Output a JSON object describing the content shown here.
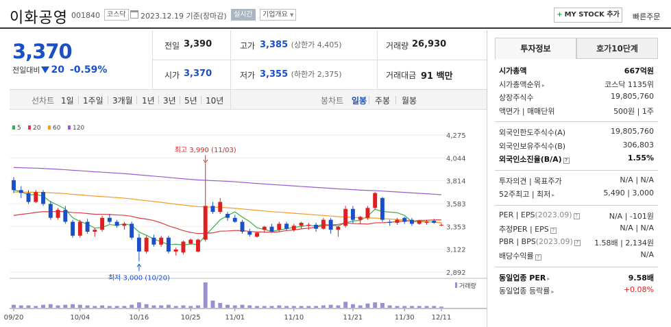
{
  "header": {
    "name": "이화공영",
    "code": "001840",
    "market": "코스닥",
    "date": "2023.12.19",
    "basis": "기준(장마감)",
    "realtime": "실시간",
    "company_info": "기업개요",
    "mystock": "MY STOCK 추가",
    "quick_order": "빠른주문"
  },
  "price": {
    "current": "3,370",
    "change_label": "전일대비",
    "change": "20",
    "change_pct": "-0.59%"
  },
  "stats": {
    "prev_label": "전일",
    "prev": "3,390",
    "high_label": "고가",
    "high": "3,385",
    "high_sub": "(상한가 4,405)",
    "volume_label": "거래량",
    "volume": "26,930",
    "open_label": "시가",
    "open": "3,370",
    "low_label": "저가",
    "low": "3,355",
    "low_sub": "(하한가 2,375)",
    "amount_label": "거래대금",
    "amount": "91",
    "amount_unit": "백만"
  },
  "periods": {
    "line_label": "선차트",
    "line_tabs": [
      "1일",
      "1주일",
      "3개월",
      "1년",
      "3년",
      "5년",
      "10년"
    ],
    "candle_label": "봉차트",
    "candle_tabs": [
      "일봉",
      "주봉",
      "월봉"
    ],
    "active_candle": "일봉"
  },
  "chart_data": {
    "type": "candlestick",
    "legend": [
      {
        "name": "5",
        "color": "#35b04a"
      },
      {
        "name": "20",
        "color": "#e03a3a"
      },
      {
        "name": "60",
        "color": "#f59a23"
      },
      {
        "name": "120",
        "color": "#9b59d0"
      }
    ],
    "y_ticks": [
      "4,275",
      "4,044",
      "3,814",
      "3,583",
      "3,353",
      "3,122",
      "2,892"
    ],
    "ylim": [
      2892,
      4275
    ],
    "x_labels": [
      "09/20",
      "10/04",
      "10/16",
      "10/25",
      "11/01",
      "11/10",
      "11/21",
      "11/30",
      "12/11"
    ],
    "high_annot": "최고 3,990 (11/03)",
    "low_annot": "최저 3,000 (10/20)",
    "volume_label": "거래량",
    "up_color": "#e02020",
    "down_color": "#1a4fc8",
    "candles": [
      {
        "o": 3820,
        "h": 3850,
        "l": 3690,
        "c": 3720
      },
      {
        "o": 3720,
        "h": 3760,
        "l": 3640,
        "c": 3690
      },
      {
        "o": 3690,
        "h": 3720,
        "l": 3580,
        "c": 3600
      },
      {
        "o": 3600,
        "h": 3720,
        "l": 3590,
        "c": 3700
      },
      {
        "o": 3700,
        "h": 3720,
        "l": 3560,
        "c": 3580
      },
      {
        "o": 3580,
        "h": 3610,
        "l": 3420,
        "c": 3440
      },
      {
        "o": 3440,
        "h": 3540,
        "l": 3420,
        "c": 3520
      },
      {
        "o": 3520,
        "h": 3560,
        "l": 3380,
        "c": 3400
      },
      {
        "o": 3400,
        "h": 3420,
        "l": 3240,
        "c": 3260
      },
      {
        "o": 3260,
        "h": 3420,
        "l": 3240,
        "c": 3400
      },
      {
        "o": 3400,
        "h": 3430,
        "l": 3280,
        "c": 3300
      },
      {
        "o": 3300,
        "h": 3340,
        "l": 3250,
        "c": 3320
      },
      {
        "o": 3320,
        "h": 3460,
        "l": 3300,
        "c": 3440
      },
      {
        "o": 3440,
        "h": 3480,
        "l": 3380,
        "c": 3400
      },
      {
        "o": 3400,
        "h": 3420,
        "l": 3340,
        "c": 3360
      },
      {
        "o": 3360,
        "h": 3400,
        "l": 3320,
        "c": 3380
      },
      {
        "o": 3380,
        "h": 3400,
        "l": 3220,
        "c": 3240
      },
      {
        "o": 3240,
        "h": 3280,
        "l": 3000,
        "c": 3100
      },
      {
        "o": 3100,
        "h": 3260,
        "l": 3080,
        "c": 3240
      },
      {
        "o": 3240,
        "h": 3270,
        "l": 3150,
        "c": 3170
      },
      {
        "o": 3170,
        "h": 3260,
        "l": 3150,
        "c": 3240
      },
      {
        "o": 3240,
        "h": 3260,
        "l": 3080,
        "c": 3100
      },
      {
        "o": 3100,
        "h": 3140,
        "l": 3060,
        "c": 3120
      },
      {
        "o": 3090,
        "h": 3210,
        "l": 3070,
        "c": 3200
      },
      {
        "o": 3180,
        "h": 3230,
        "l": 3170,
        "c": 3220
      },
      {
        "o": 3100,
        "h": 3230,
        "l": 3090,
        "c": 3220
      },
      {
        "o": 3220,
        "h": 3990,
        "l": 3200,
        "c": 3560
      },
      {
        "o": 3560,
        "h": 3600,
        "l": 3480,
        "c": 3500
      },
      {
        "o": 3500,
        "h": 3640,
        "l": 3480,
        "c": 3600
      },
      {
        "o": 3480,
        "h": 3500,
        "l": 3410,
        "c": 3440
      },
      {
        "o": 3440,
        "h": 3470,
        "l": 3390,
        "c": 3400
      },
      {
        "o": 3400,
        "h": 3420,
        "l": 3280,
        "c": 3300
      },
      {
        "o": 3300,
        "h": 3330,
        "l": 3250,
        "c": 3270
      },
      {
        "o": 3250,
        "h": 3300,
        "l": 3240,
        "c": 3290
      },
      {
        "o": 3320,
        "h": 3360,
        "l": 3290,
        "c": 3350
      },
      {
        "o": 3350,
        "h": 3380,
        "l": 3290,
        "c": 3300
      },
      {
        "o": 3320,
        "h": 3400,
        "l": 3300,
        "c": 3380
      },
      {
        "o": 3380,
        "h": 3400,
        "l": 3310,
        "c": 3330
      },
      {
        "o": 3320,
        "h": 3380,
        "l": 3300,
        "c": 3360
      },
      {
        "o": 3360,
        "h": 3400,
        "l": 3330,
        "c": 3390
      },
      {
        "o": 3360,
        "h": 3390,
        "l": 3320,
        "c": 3370
      },
      {
        "o": 3370,
        "h": 3390,
        "l": 3300,
        "c": 3330
      },
      {
        "o": 3330,
        "h": 3440,
        "l": 3320,
        "c": 3420
      },
      {
        "o": 3420,
        "h": 3440,
        "l": 3280,
        "c": 3320
      },
      {
        "o": 3320,
        "h": 3360,
        "l": 3250,
        "c": 3350
      },
      {
        "o": 3360,
        "h": 3560,
        "l": 3340,
        "c": 3530
      },
      {
        "o": 3530,
        "h": 3560,
        "l": 3380,
        "c": 3420
      },
      {
        "o": 3420,
        "h": 3460,
        "l": 3380,
        "c": 3450
      },
      {
        "o": 3440,
        "h": 3560,
        "l": 3420,
        "c": 3540
      },
      {
        "o": 3540,
        "h": 3700,
        "l": 3520,
        "c": 3690
      },
      {
        "o": 3640,
        "h": 3650,
        "l": 3400,
        "c": 3420
      },
      {
        "o": 3400,
        "h": 3420,
        "l": 3360,
        "c": 3390
      },
      {
        "o": 3390,
        "h": 3440,
        "l": 3370,
        "c": 3420
      },
      {
        "o": 3440,
        "h": 3450,
        "l": 3380,
        "c": 3400
      },
      {
        "o": 3420,
        "h": 3440,
        "l": 3360,
        "c": 3380
      },
      {
        "o": 3380,
        "h": 3420,
        "l": 3370,
        "c": 3410
      },
      {
        "o": 3390,
        "h": 3420,
        "l": 3370,
        "c": 3400
      },
      {
        "o": 3410,
        "h": 3430,
        "l": 3380,
        "c": 3390
      },
      {
        "o": 3370,
        "h": 3385,
        "l": 3355,
        "c": 3370
      }
    ],
    "volume": [
      5,
      4,
      4,
      3,
      5,
      6,
      4,
      5,
      6,
      5,
      4,
      3,
      4,
      3,
      3,
      3,
      5,
      9,
      6,
      4,
      4,
      5,
      3,
      4,
      3,
      4,
      42,
      12,
      8,
      5,
      4,
      5,
      4,
      3,
      3,
      3,
      4,
      3,
      3,
      3,
      3,
      3,
      4,
      5,
      4,
      10,
      6,
      4,
      7,
      9,
      8,
      4,
      3,
      3,
      3,
      3,
      3,
      3,
      2
    ]
  },
  "right_panel": {
    "tab_info": "투자정보",
    "tab_quote": "호가10단계",
    "rows1": [
      {
        "l": "시가총액",
        "r": "667억원"
      },
      {
        "l": "시가총액순위",
        "r": "코스닥 1135위"
      },
      {
        "l": "상장주식수",
        "r": "19,805,760"
      },
      {
        "l": "액면가 | 매매단위",
        "r": "500원 | 1주"
      }
    ],
    "rows2": [
      {
        "l": "외국인한도주식수(A)",
        "r": "19,805,760"
      },
      {
        "l": "외국인보유주식수(B)",
        "r": "306,803"
      },
      {
        "l": "외국인소진율(B/A)",
        "r": "1.55%"
      }
    ],
    "rows3": [
      {
        "l": "투자의견 | 목표주가",
        "r": "N/A | N/A"
      },
      {
        "l": "52주최고 | 최저",
        "r": "5,490 | 3,000"
      }
    ],
    "rows4": [
      {
        "l": "PER | EPS",
        "l_sub": "(2023.09)",
        "r": "N/A | -101원"
      },
      {
        "l": "추정PER | EPS",
        "r": "N/A | N/A"
      },
      {
        "l": "PBR | BPS",
        "l_sub": "(2023.09)",
        "r": "1.58배 | 2,134원"
      },
      {
        "l": "배당수익률",
        "r": "N/A"
      }
    ],
    "rows5": [
      {
        "l": "동일업종 PER",
        "r": "9.58배"
      },
      {
        "l": "동일업종 등락률",
        "r": "+0.08%"
      }
    ]
  }
}
